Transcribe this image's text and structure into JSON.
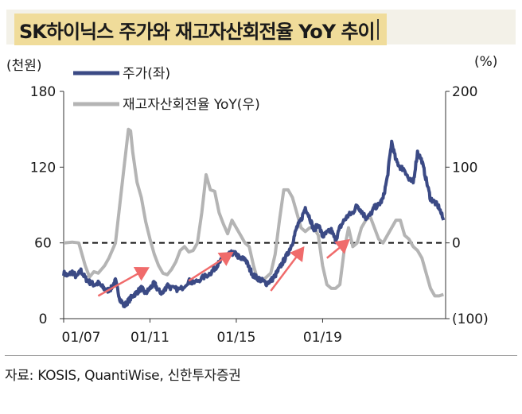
{
  "title": "SK하이닉스 주가와 재고자산회전율 YoY 추이",
  "left_unit": "(천원)",
  "right_unit": "(%)",
  "source": "자료: KOSIS, QuantiWise, 신한투자증권",
  "colors": {
    "price": "#3b4a85",
    "inventory": "#b4b4b4",
    "arrow": "#f06b6b",
    "title_bg": "#f0dc9a"
  },
  "chart_data": {
    "type": "line",
    "title": "SK하이닉스 주가와 재고자산회전율 YoY 추이",
    "xlabel": "",
    "ylabel": "(천원)",
    "y2label": "(%)",
    "x_ticks": [
      "01/07",
      "01/11",
      "01/15",
      "01/19"
    ],
    "y_ticks": [
      "0",
      "60",
      "120",
      "180"
    ],
    "y2_ticks": [
      "(100)",
      "0",
      "100",
      "200"
    ],
    "ylim": [
      0,
      180
    ],
    "y2lim": [
      -100,
      200
    ],
    "legend": {
      "position": "top-left",
      "entries": [
        "주가(좌)",
        "재고자산회전율 YoY(우)"
      ]
    },
    "reference_line": {
      "axis": "y2",
      "value": 0,
      "style": "dashed"
    },
    "series": [
      {
        "name": "주가(좌)",
        "axis": "left",
        "x": [
          2007.0,
          2007.2,
          2007.4,
          2007.6,
          2007.8,
          2008.0,
          2008.2,
          2008.4,
          2008.6,
          2008.8,
          2009.0,
          2009.2,
          2009.4,
          2009.6,
          2009.8,
          2010.0,
          2010.2,
          2010.4,
          2010.6,
          2010.8,
          2011.0,
          2011.2,
          2011.4,
          2011.6,
          2011.8,
          2012.0,
          2012.4,
          2012.8,
          2013.0,
          2013.4,
          2013.8,
          2014.0,
          2014.2,
          2014.4,
          2014.6,
          2014.8,
          2015.0,
          2015.2,
          2015.4,
          2015.6,
          2015.8,
          2016.0,
          2016.2,
          2016.4,
          2016.6,
          2016.8,
          2017.0,
          2017.2,
          2017.4,
          2017.6,
          2017.8,
          2018.0,
          2018.2,
          2018.4,
          2018.6,
          2018.8,
          2019.0,
          2019.2,
          2019.4,
          2019.6,
          2019.8,
          2020.0,
          2020.2,
          2020.4,
          2020.6,
          2020.8,
          2021.0,
          2021.2,
          2021.4,
          2021.6,
          2021.8,
          2022.0,
          2022.2,
          2022.4,
          2022.6,
          2022.8,
          2023.0,
          2023.2,
          2023.4,
          2023.6,
          2023.8,
          2024.0,
          2024.2,
          2024.4,
          2024.6
        ],
        "y": [
          36,
          34,
          37,
          33,
          38,
          32,
          29,
          27,
          28,
          25,
          22,
          24,
          30,
          16,
          10,
          14,
          18,
          21,
          24,
          20,
          24,
          28,
          22,
          20,
          27,
          24,
          23,
          30,
          28,
          32,
          36,
          40,
          44,
          48,
          50,
          52,
          51,
          47,
          48,
          40,
          34,
          32,
          30,
          28,
          30,
          34,
          40,
          46,
          52,
          60,
          72,
          78,
          88,
          80,
          70,
          75,
          65,
          68,
          70,
          62,
          72,
          78,
          82,
          84,
          90,
          85,
          80,
          82,
          88,
          90,
          95,
          112,
          140,
          125,
          120,
          118,
          110,
          108,
          132,
          125,
          110,
          95,
          92,
          88,
          78
        ]
      },
      {
        "name": "재고자산회전율 YoY(우)",
        "axis": "right",
        "x": [
          2007.0,
          2007.4,
          2007.7,
          2008.0,
          2008.2,
          2008.4,
          2008.6,
          2008.9,
          2009.1,
          2009.4,
          2009.6,
          2009.8,
          2010.0,
          2010.1,
          2010.2,
          2010.4,
          2010.6,
          2010.8,
          2011.0,
          2011.2,
          2011.4,
          2011.6,
          2011.8,
          2012.0,
          2012.2,
          2012.4,
          2012.6,
          2012.8,
          2013.0,
          2013.2,
          2013.4,
          2013.6,
          2013.8,
          2014.0,
          2014.2,
          2014.4,
          2014.6,
          2014.8,
          2015.0,
          2015.2,
          2015.4,
          2015.6,
          2015.8,
          2016.0,
          2016.2,
          2016.4,
          2016.6,
          2016.8,
          2017.0,
          2017.2,
          2017.4,
          2017.6,
          2017.8,
          2018.0,
          2018.2,
          2018.4,
          2018.6,
          2018.8,
          2019.0,
          2019.2,
          2019.4,
          2019.6,
          2019.8,
          2020.0,
          2020.2,
          2020.4,
          2020.6,
          2020.8,
          2021.0,
          2021.2,
          2021.4,
          2021.6,
          2021.8,
          2022.0,
          2022.2,
          2022.4,
          2022.6,
          2022.8,
          2023.0,
          2023.2,
          2023.4,
          2023.6,
          2023.8,
          2024.0,
          2024.2,
          2024.4,
          2024.6
        ],
        "y": [
          0,
          1,
          0,
          -30,
          -45,
          -38,
          -40,
          -30,
          -20,
          0,
          50,
          100,
          150,
          148,
          120,
          80,
          60,
          28,
          5,
          -15,
          -30,
          -40,
          -42,
          -35,
          -25,
          -10,
          -5,
          -12,
          -10,
          0,
          40,
          90,
          70,
          68,
          40,
          25,
          12,
          30,
          20,
          10,
          0,
          -5,
          -30,
          -50,
          -50,
          -45,
          -40,
          -15,
          30,
          70,
          70,
          60,
          40,
          20,
          15,
          20,
          20,
          10,
          -30,
          -55,
          -60,
          -60,
          -55,
          -10,
          20,
          -5,
          0,
          20,
          30,
          35,
          20,
          5,
          0,
          10,
          20,
          30,
          30,
          10,
          5,
          -5,
          -10,
          -20,
          -40,
          -60,
          -70,
          -70,
          -68
        ]
      }
    ],
    "annotations": [
      {
        "type": "arrow",
        "from": [
          2008.6,
          18
        ],
        "to": [
          2010.9,
          40
        ]
      },
      {
        "type": "arrow",
        "from": [
          2012.8,
          30
        ],
        "to": [
          2014.8,
          52
        ]
      },
      {
        "type": "arrow",
        "from": [
          2016.6,
          22
        ],
        "to": [
          2018.1,
          56
        ]
      },
      {
        "type": "arrow",
        "from": [
          2019.2,
          48
        ],
        "to": [
          2020.2,
          62
        ]
      }
    ]
  }
}
